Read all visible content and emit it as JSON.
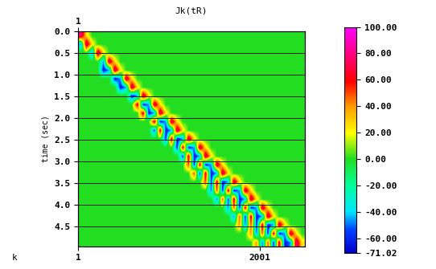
{
  "chart_data": {
    "type": "heatmap",
    "title": "Jk(tR)",
    "x_label": "k",
    "y_label": "time (sec)",
    "xlim": [
      1,
      2500
    ],
    "ylim": [
      0,
      4.95
    ],
    "xticks": [
      1,
      2001
    ],
    "x2ticks": [
      1
    ],
    "yticks": [
      {
        "value": 0,
        "label": "0.0"
      },
      {
        "value": 0.5,
        "label": "0.5"
      },
      {
        "value": 1,
        "label": "1.0"
      },
      {
        "value": 1.5,
        "label": "1.5"
      },
      {
        "value": 2,
        "label": "2.0"
      },
      {
        "value": 2.5,
        "label": "2.5"
      },
      {
        "value": 3,
        "label": "3.0"
      },
      {
        "value": 3.5,
        "label": "3.5"
      },
      {
        "value": 4,
        "label": "4.0"
      },
      {
        "value": 4.5,
        "label": "4.5"
      }
    ],
    "grid": "y",
    "colorbar_range": [
      -71.02,
      100
    ],
    "colorbar_ticks": [
      {
        "value": 100,
        "label": "100.00"
      },
      {
        "value": 80,
        "label": "80.00"
      },
      {
        "value": 60,
        "label": "60.00"
      },
      {
        "value": 40,
        "label": "40.00"
      },
      {
        "value": 20,
        "label": "20.00"
      },
      {
        "value": 0,
        "label": "0.00"
      },
      {
        "value": -20,
        "label": "-20.00"
      },
      {
        "value": -40,
        "label": "-40.00"
      },
      {
        "value": -60,
        "label": "-60.00"
      },
      {
        "value": -71.02,
        "label": "-71.02"
      }
    ],
    "cells": [
      [
        80,
        25,
        0,
        0,
        0,
        0,
        0,
        0,
        0,
        0,
        0,
        0,
        0,
        0,
        0,
        0,
        0,
        0,
        0,
        0,
        0,
        0,
        0,
        0,
        0,
        0,
        0,
        0,
        0,
        0,
        0,
        0,
        0,
        0,
        0,
        0,
        0,
        0,
        0,
        0
      ],
      [
        -45,
        80,
        25,
        0,
        0,
        0,
        0,
        0,
        0,
        0,
        0,
        0,
        0,
        0,
        0,
        0,
        0,
        0,
        0,
        0,
        0,
        0,
        0,
        0,
        0,
        0,
        0,
        0,
        0,
        0,
        0,
        0,
        0,
        0,
        0,
        0,
        0,
        0,
        0,
        0
      ],
      [
        0,
        0,
        -45,
        80,
        25,
        0,
        0,
        0,
        0,
        0,
        0,
        0,
        0,
        0,
        0,
        0,
        0,
        0,
        0,
        0,
        0,
        0,
        0,
        0,
        0,
        0,
        0,
        0,
        0,
        0,
        0,
        0,
        0,
        0,
        0,
        0,
        0,
        0,
        0,
        0
      ],
      [
        0,
        0,
        0,
        0,
        -45,
        80,
        25,
        0,
        0,
        0,
        0,
        0,
        0,
        0,
        0,
        0,
        0,
        0,
        0,
        0,
        0,
        0,
        0,
        0,
        0,
        0,
        0,
        0,
        0,
        0,
        0,
        0,
        0,
        0,
        0,
        0,
        0,
        0,
        0,
        0
      ],
      [
        0,
        0,
        0,
        0,
        -65,
        -45,
        80,
        25,
        0,
        0,
        0,
        0,
        0,
        0,
        0,
        0,
        0,
        0,
        0,
        0,
        0,
        0,
        0,
        0,
        0,
        0,
        0,
        0,
        0,
        0,
        0,
        0,
        0,
        0,
        0,
        0,
        0,
        0,
        0,
        0
      ],
      [
        0,
        0,
        0,
        0,
        0,
        0,
        -65,
        -45,
        80,
        25,
        0,
        0,
        0,
        0,
        0,
        0,
        0,
        0,
        0,
        0,
        0,
        0,
        0,
        0,
        0,
        0,
        0,
        0,
        0,
        0,
        0,
        0,
        0,
        0,
        0,
        0,
        0,
        0,
        0,
        0
      ],
      [
        0,
        0,
        0,
        0,
        0,
        0,
        0,
        -65,
        -45,
        80,
        25,
        0,
        0,
        0,
        0,
        0,
        0,
        0,
        0,
        0,
        0,
        0,
        0,
        0,
        0,
        0,
        0,
        0,
        0,
        0,
        0,
        0,
        0,
        0,
        0,
        0,
        0,
        0,
        0,
        0
      ],
      [
        0,
        0,
        0,
        0,
        0,
        0,
        0,
        0,
        0,
        -65,
        -45,
        80,
        25,
        0,
        0,
        0,
        0,
        0,
        0,
        0,
        0,
        0,
        0,
        0,
        0,
        0,
        0,
        0,
        0,
        0,
        0,
        0,
        0,
        0,
        0,
        0,
        0,
        0,
        0,
        0
      ],
      [
        0,
        0,
        0,
        0,
        0,
        0,
        0,
        0,
        0,
        0,
        70,
        -65,
        -45,
        80,
        25,
        0,
        0,
        0,
        0,
        0,
        0,
        0,
        0,
        0,
        0,
        0,
        0,
        0,
        0,
        0,
        0,
        0,
        0,
        0,
        0,
        0,
        0,
        0,
        0,
        0
      ],
      [
        0,
        0,
        0,
        0,
        0,
        0,
        0,
        0,
        0,
        0,
        0,
        70,
        -65,
        -45,
        80,
        25,
        0,
        0,
        0,
        0,
        0,
        0,
        0,
        0,
        0,
        0,
        0,
        0,
        0,
        0,
        0,
        0,
        0,
        0,
        0,
        0,
        0,
        0,
        0,
        0
      ],
      [
        0,
        0,
        0,
        0,
        0,
        0,
        0,
        0,
        0,
        0,
        0,
        0,
        0,
        70,
        -65,
        -45,
        80,
        25,
        0,
        0,
        0,
        0,
        0,
        0,
        0,
        0,
        0,
        0,
        0,
        0,
        0,
        0,
        0,
        0,
        0,
        0,
        0,
        0,
        0,
        0
      ],
      [
        0,
        0,
        0,
        0,
        0,
        0,
        0,
        0,
        0,
        0,
        0,
        0,
        0,
        -60,
        70,
        -65,
        -45,
        80,
        25,
        0,
        0,
        0,
        0,
        0,
        0,
        0,
        0,
        0,
        0,
        0,
        0,
        0,
        0,
        0,
        0,
        0,
        0,
        0,
        0,
        0
      ],
      [
        0,
        0,
        0,
        0,
        0,
        0,
        0,
        0,
        0,
        0,
        0,
        0,
        0,
        0,
        0,
        -60,
        70,
        -65,
        -45,
        80,
        25,
        0,
        0,
        0,
        0,
        0,
        0,
        0,
        0,
        0,
        0,
        0,
        0,
        0,
        0,
        0,
        0,
        0,
        0,
        0
      ],
      [
        0,
        0,
        0,
        0,
        0,
        0,
        0,
        0,
        0,
        0,
        0,
        0,
        0,
        0,
        0,
        0,
        0,
        -60,
        70,
        -65,
        -45,
        80,
        25,
        0,
        0,
        0,
        0,
        0,
        0,
        0,
        0,
        0,
        0,
        0,
        0,
        0,
        0,
        0,
        0,
        0
      ],
      [
        0,
        0,
        0,
        0,
        0,
        0,
        0,
        0,
        0,
        0,
        0,
        0,
        0,
        0,
        0,
        0,
        0,
        0,
        -60,
        70,
        -65,
        -45,
        80,
        25,
        0,
        0,
        0,
        0,
        0,
        0,
        0,
        0,
        0,
        0,
        0,
        0,
        0,
        0,
        0,
        0
      ],
      [
        0,
        0,
        0,
        0,
        0,
        0,
        0,
        0,
        0,
        0,
        0,
        0,
        0,
        0,
        0,
        0,
        0,
        0,
        0,
        50,
        -60,
        70,
        -65,
        -45,
        80,
        25,
        0,
        0,
        0,
        0,
        0,
        0,
        0,
        0,
        0,
        0,
        0,
        0,
        0,
        0
      ],
      [
        0,
        0,
        0,
        0,
        0,
        0,
        0,
        0,
        0,
        0,
        0,
        0,
        0,
        0,
        0,
        0,
        0,
        0,
        0,
        0,
        50,
        -60,
        70,
        -65,
        -45,
        80,
        25,
        0,
        0,
        0,
        0,
        0,
        0,
        0,
        0,
        0,
        0,
        0,
        0,
        0
      ],
      [
        0,
        0,
        0,
        0,
        0,
        0,
        0,
        0,
        0,
        0,
        0,
        0,
        0,
        0,
        0,
        0,
        0,
        0,
        0,
        0,
        0,
        0,
        50,
        -60,
        70,
        -65,
        -45,
        80,
        25,
        0,
        0,
        0,
        0,
        0,
        0,
        0,
        0,
        0,
        0,
        0
      ],
      [
        0,
        0,
        0,
        0,
        0,
        0,
        0,
        0,
        0,
        0,
        0,
        0,
        0,
        0,
        0,
        0,
        0,
        0,
        0,
        0,
        0,
        0,
        0,
        -50,
        50,
        -60,
        70,
        -65,
        -45,
        80,
        25,
        0,
        0,
        0,
        0,
        0,
        0,
        0,
        0,
        0
      ],
      [
        0,
        0,
        0,
        0,
        0,
        0,
        0,
        0,
        0,
        0,
        0,
        0,
        0,
        0,
        0,
        0,
        0,
        0,
        0,
        0,
        0,
        0,
        0,
        0,
        -50,
        50,
        -60,
        70,
        -65,
        -45,
        80,
        25,
        0,
        0,
        0,
        0,
        0,
        0,
        0,
        0
      ],
      [
        0,
        0,
        0,
        0,
        0,
        0,
        0,
        0,
        0,
        0,
        0,
        0,
        0,
        0,
        0,
        0,
        0,
        0,
        0,
        0,
        0,
        0,
        0,
        0,
        0,
        0,
        -50,
        50,
        -60,
        70,
        -65,
        -45,
        80,
        25,
        0,
        0,
        0,
        0,
        0,
        0
      ],
      [
        0,
        0,
        0,
        0,
        0,
        0,
        0,
        0,
        0,
        0,
        0,
        0,
        0,
        0,
        0,
        0,
        0,
        0,
        0,
        0,
        0,
        0,
        0,
        0,
        0,
        0,
        0,
        -50,
        50,
        -60,
        70,
        -65,
        -45,
        80,
        25,
        0,
        0,
        0,
        0,
        0
      ],
      [
        0,
        0,
        0,
        0,
        0,
        0,
        0,
        0,
        0,
        0,
        0,
        0,
        0,
        0,
        0,
        0,
        0,
        0,
        0,
        0,
        0,
        0,
        0,
        0,
        0,
        0,
        0,
        0,
        40,
        -50,
        50,
        -60,
        70,
        -65,
        -45,
        80,
        25,
        0,
        0,
        0
      ],
      [
        0,
        0,
        0,
        0,
        0,
        0,
        0,
        0,
        0,
        0,
        0,
        0,
        0,
        0,
        0,
        0,
        0,
        0,
        0,
        0,
        0,
        0,
        0,
        0,
        0,
        0,
        0,
        0,
        0,
        0,
        40,
        -50,
        50,
        -60,
        70,
        -65,
        -45,
        80,
        25,
        0
      ],
      [
        0,
        0,
        0,
        0,
        0,
        0,
        0,
        0,
        0,
        0,
        0,
        0,
        0,
        0,
        0,
        0,
        0,
        0,
        0,
        0,
        0,
        0,
        0,
        0,
        0,
        0,
        0,
        0,
        0,
        0,
        0,
        40,
        -50,
        50,
        -60,
        70,
        -65,
        -45,
        80,
        25
      ]
    ]
  }
}
